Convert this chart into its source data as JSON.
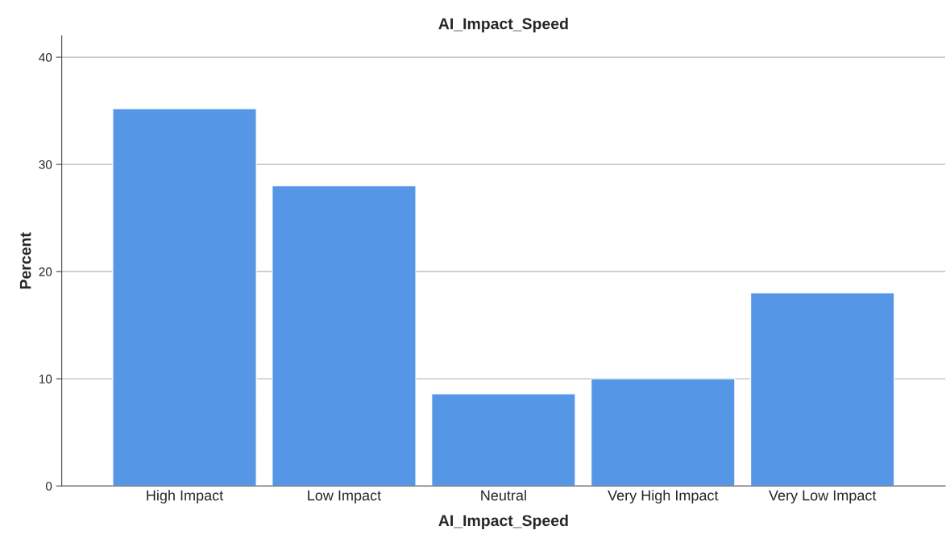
{
  "chart_data": {
    "type": "bar",
    "title": "AI_Impact_Speed",
    "xlabel": "AI_Impact_Speed",
    "ylabel": "Percent",
    "categories": [
      "High Impact",
      "Low Impact",
      "Neutral",
      "Very High Impact",
      "Very Low Impact"
    ],
    "values": [
      35.2,
      28.0,
      8.6,
      10.0,
      18.0
    ],
    "color": "#5596e6",
    "ylim": [
      0,
      42
    ],
    "yticks": [
      0,
      10,
      20,
      30,
      40
    ],
    "grid": "y"
  }
}
